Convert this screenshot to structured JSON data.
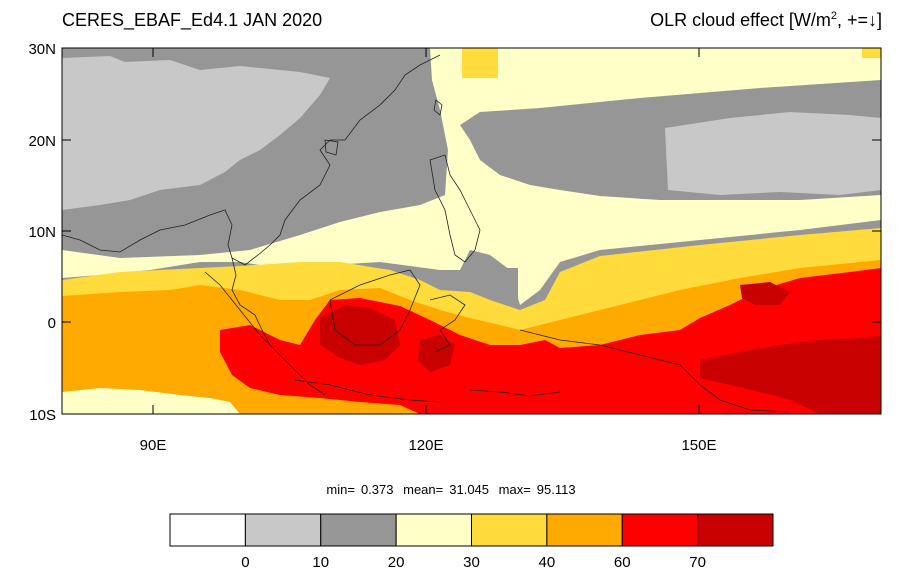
{
  "map": {
    "title_left": "CERES_EBAF_Ed4.1 JAN 2020",
    "title_right": "OLR cloud effect [W/m",
    "title_right_sup": "2",
    "title_right_tail": ", +=↓]",
    "lat_labels": [
      "30N",
      "20N",
      "10N",
      "0",
      "10S"
    ],
    "lon_labels": [
      "90E",
      "120E",
      "150E"
    ],
    "stats": {
      "min_label": "min=",
      "min_value": "0.373",
      "mean_label": "mean=",
      "mean_value": "31.045",
      "max_label": "max=",
      "max_value": "95.113"
    }
  },
  "colorbar": {
    "tick_labels": [
      "0",
      "10",
      "20",
      "30",
      "40",
      "60",
      "70"
    ],
    "colors": [
      "#ffffff",
      "#c8c8c8",
      "#969696",
      "#ffffc8",
      "#ffdc3c",
      "#ffaa00",
      "#ff0000",
      "#c80000"
    ]
  },
  "chart_data": {
    "type": "heatmap",
    "title": "CERES_EBAF_Ed4.1 JAN 2020",
    "subtitle": "OLR cloud effect [W/m2, +=↓]",
    "x_range": [
      80,
      171
    ],
    "y_range": [
      -10,
      30
    ],
    "levels": [
      0,
      10,
      20,
      30,
      40,
      60,
      70
    ],
    "min": 0.373,
    "mean": 31.045,
    "max": 95.113
  }
}
